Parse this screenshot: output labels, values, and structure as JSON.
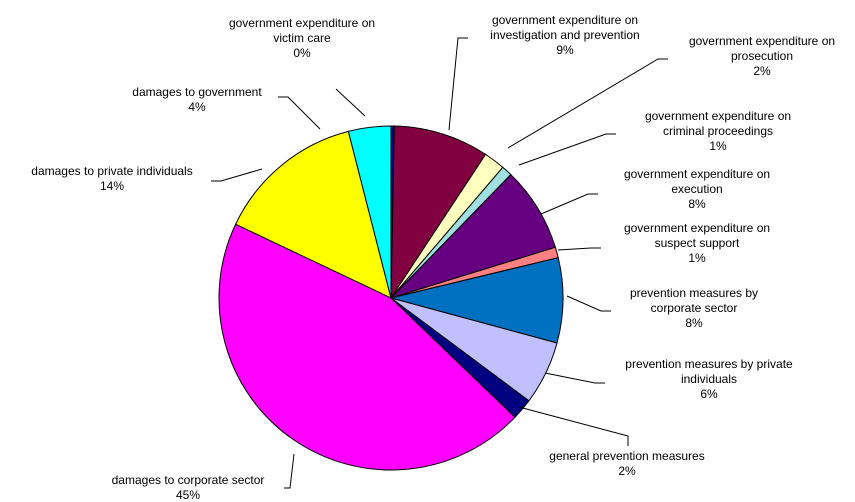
{
  "chart_data": {
    "type": "pie",
    "title": "",
    "legend": "none",
    "slices": [
      {
        "label": [
          "government expenditure on",
          "victim care"
        ],
        "value_label": "0%",
        "value": 0.3,
        "color": "#000080"
      },
      {
        "label": [
          "government expenditure on",
          "investigation and prevention"
        ],
        "value_label": "9%",
        "value": 9,
        "color": "#800040"
      },
      {
        "label": [
          "government expenditure on",
          "prosecution"
        ],
        "value_label": "2%",
        "value": 2,
        "color": "#FFFFC0"
      },
      {
        "label": [
          "government expenditure on",
          "criminal proceedings"
        ],
        "value_label": "1%",
        "value": 1,
        "color": "#A0E0E0"
      },
      {
        "label": [
          "government expenditure on",
          "execution"
        ],
        "value_label": "8%",
        "value": 8,
        "color": "#660080"
      },
      {
        "label": [
          "government expenditure on",
          "suspect support"
        ],
        "value_label": "1%",
        "value": 1,
        "color": "#FF8080"
      },
      {
        "label": [
          "prevention measures by",
          "corporate sector"
        ],
        "value_label": "8%",
        "value": 8,
        "color": "#0070C0"
      },
      {
        "label": [
          "prevention measures by private",
          "individuals"
        ],
        "value_label": "6%",
        "value": 6,
        "color": "#C0C0FF"
      },
      {
        "label": [
          "general prevention measures"
        ],
        "value_label": "2%",
        "value": 2,
        "color": "#000080"
      },
      {
        "label": [
          "damages to corporate sector"
        ],
        "value_label": "45%",
        "value": 45,
        "color": "#FF00FF"
      },
      {
        "label": [
          "damages to private individuals"
        ],
        "value_label": "14%",
        "value": 14,
        "color": "#FFFF00"
      },
      {
        "label": [
          "damages to government"
        ],
        "value_label": "4%",
        "value": 4,
        "color": "#00FFFF"
      }
    ]
  }
}
